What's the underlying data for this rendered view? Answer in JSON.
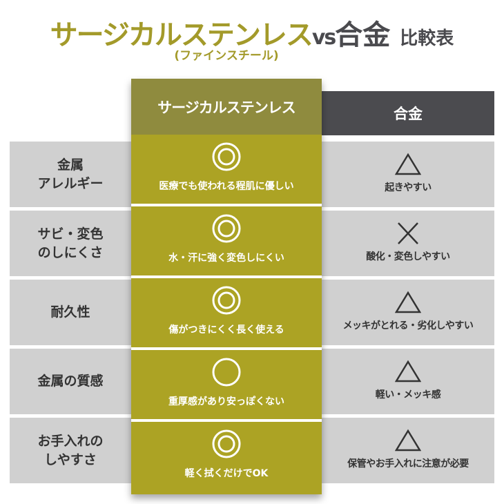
{
  "title": {
    "main": "サージカルステンレス",
    "vs": "vs",
    "alloy": "合金",
    "comparison": "比較表",
    "subtitle": "(ファインスチール)"
  },
  "colors": {
    "olive": "#aca324",
    "olive_header": "#8f8b3e",
    "dark_header": "#4b4b4f",
    "row_gray": "#d0d0d0"
  },
  "columns": {
    "stainless": "サージカルステンレス",
    "alloy": "合金"
  },
  "rows": [
    {
      "label": [
        "金属",
        "アレルギー"
      ],
      "stainless_symbol": "double-circle",
      "stainless_note": "医療でも使われる程肌に優しい",
      "alloy_symbol": "triangle",
      "alloy_note": "起きやすい"
    },
    {
      "label": [
        "サビ・変色",
        "のしにくさ"
      ],
      "stainless_symbol": "double-circle",
      "stainless_note": "水・汗に強く変色しにくい",
      "alloy_symbol": "cross",
      "alloy_note": "酸化・変色しやすい"
    },
    {
      "label": [
        "耐久性"
      ],
      "stainless_symbol": "double-circle",
      "stainless_note": "傷がつきにくく長く使える",
      "alloy_symbol": "triangle",
      "alloy_note": "メッキがとれる・劣化しやすい"
    },
    {
      "label": [
        "金属の質感"
      ],
      "stainless_symbol": "circle",
      "stainless_note": "重厚感があり安っぽくない",
      "alloy_symbol": "triangle",
      "alloy_note": "軽い・メッキ感"
    },
    {
      "label": [
        "お手入れの",
        "しやすさ"
      ],
      "stainless_symbol": "double-circle",
      "stainless_note": "軽く拭くだけでOK",
      "alloy_symbol": "triangle",
      "alloy_note": "保管やお手入れに注意が必要"
    }
  ]
}
